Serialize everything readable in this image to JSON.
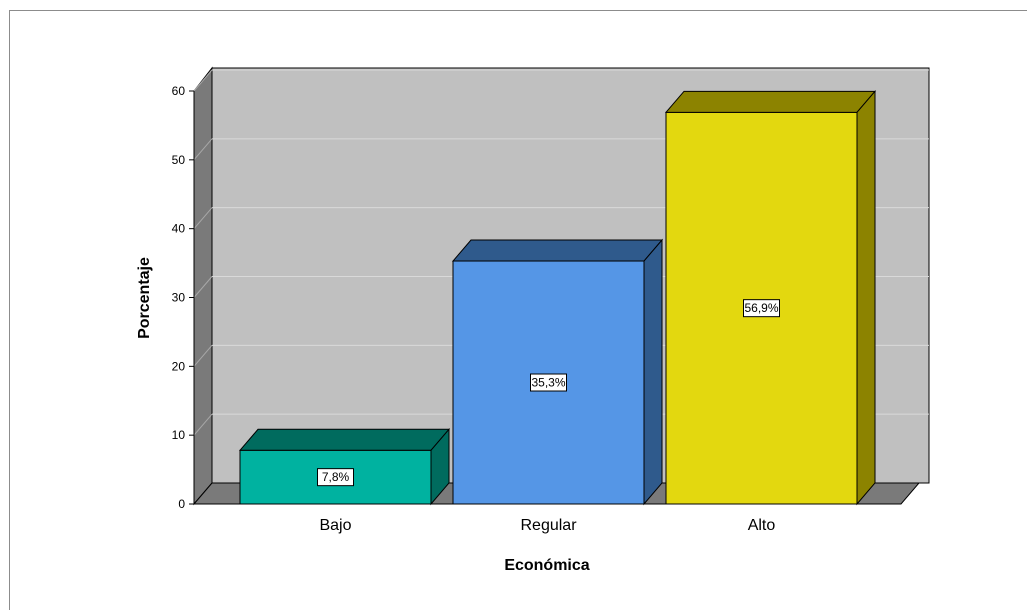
{
  "chart_data": {
    "type": "bar",
    "style": "3d",
    "categories": [
      "Bajo",
      "Regular",
      "Alto"
    ],
    "values": [
      7.8,
      35.3,
      56.9
    ],
    "data_labels": [
      "7,8%",
      "35,3%",
      "56,9%"
    ],
    "bar_colors": [
      "#00b2a0",
      "#5596e6",
      "#e3d80f"
    ],
    "bar_side_colors": [
      "#006b5e",
      "#2f5a8c",
      "#8c8300"
    ],
    "xlabel": "Económica",
    "ylabel": "Porcentaje",
    "ylim": [
      0,
      60
    ],
    "yticks": [
      0,
      10,
      20,
      30,
      40,
      50,
      60
    ],
    "grid": true,
    "background": "#c0c0c0",
    "legend": "none"
  }
}
